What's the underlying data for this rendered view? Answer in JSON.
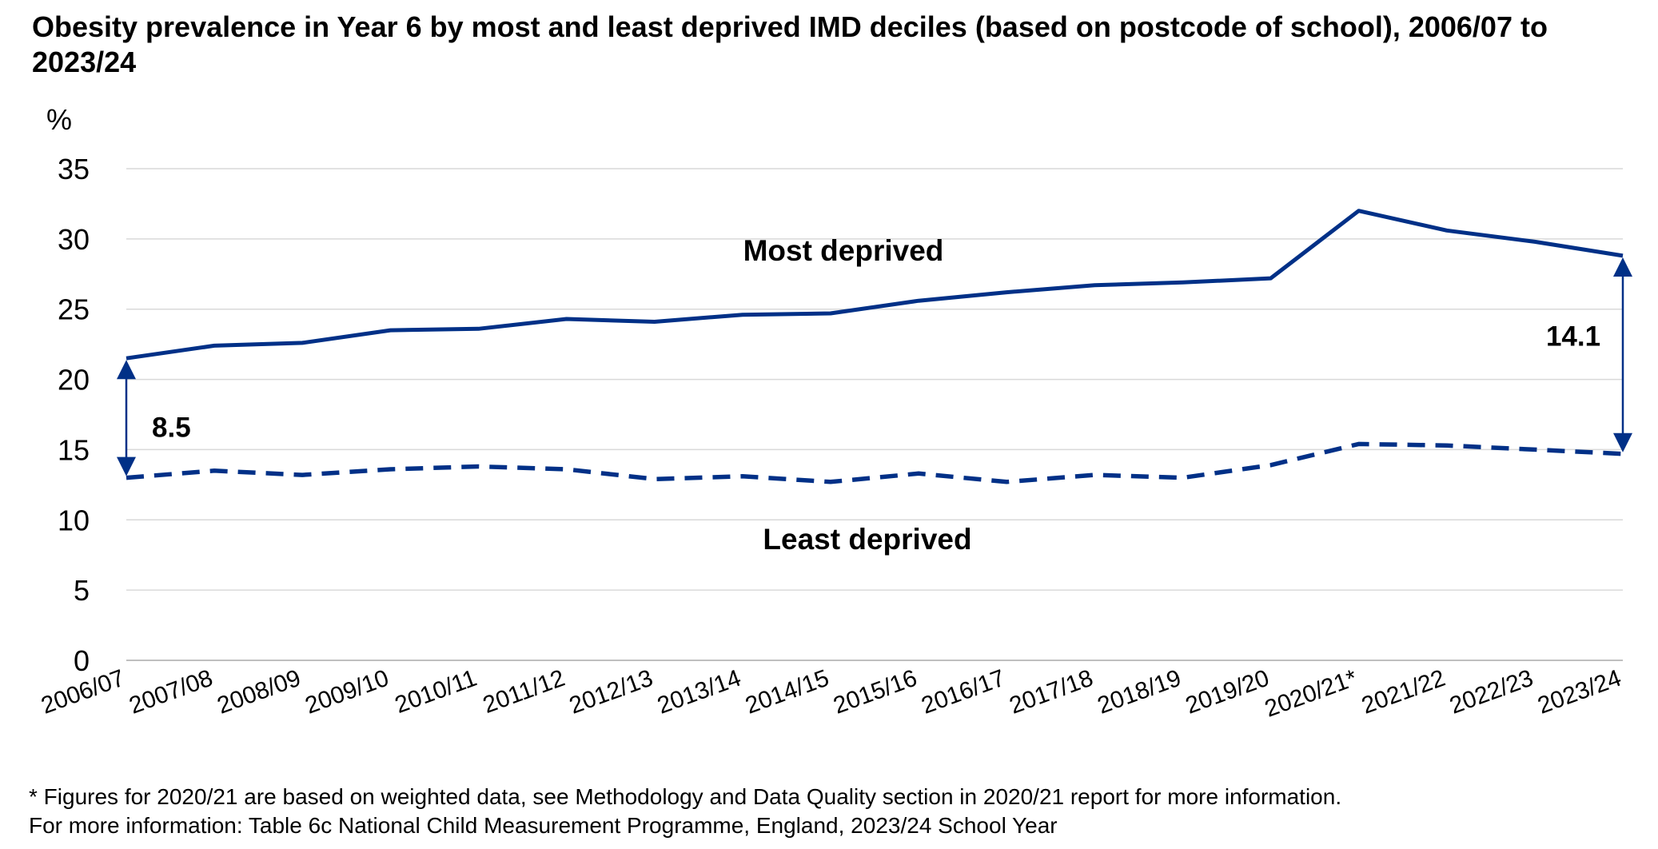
{
  "title": "Obesity prevalence in Year 6 by most and least deprived IMD deciles (based on postcode of school), 2006/07 to 2023/24",
  "notes": {
    "footnote": "* Figures for 2020/21 are based on weighted data, see Methodology and Data Quality section in 2020/21 report for more information.",
    "source": "For more information: Table 6c National Child Measurement Programme, England, 2023/24 School Year"
  },
  "colors": {
    "series": "#003087",
    "grid": "#d9d9d9",
    "axis": "#bfbfbf"
  },
  "chart_data": {
    "type": "line",
    "ylabel": "%",
    "ylim": [
      0,
      35
    ],
    "yticks": [
      0,
      5,
      10,
      15,
      20,
      25,
      30,
      35
    ],
    "grid": "horizontal",
    "legend": "none",
    "categories": [
      "2006/07",
      "2007/08",
      "2008/09",
      "2009/10",
      "2010/11",
      "2011/12",
      "2012/13",
      "2013/14",
      "2014/15",
      "2015/16",
      "2016/17",
      "2017/18",
      "2018/19",
      "2019/20",
      "2020/21*",
      "2021/22",
      "2022/23",
      "2023/24"
    ],
    "series": [
      {
        "name": "Most deprived",
        "style": "solid",
        "values": [
          21.5,
          22.4,
          22.6,
          23.5,
          23.6,
          24.3,
          24.1,
          24.6,
          24.7,
          25.6,
          26.2,
          26.7,
          26.9,
          27.2,
          32.0,
          30.6,
          29.8,
          28.8
        ]
      },
      {
        "name": "Least deprived",
        "style": "dashed",
        "values": [
          13.0,
          13.5,
          13.2,
          13.6,
          13.8,
          13.6,
          12.9,
          13.1,
          12.7,
          13.3,
          12.7,
          13.2,
          13.0,
          13.9,
          15.4,
          15.3,
          15.0,
          14.7
        ]
      }
    ],
    "annotations": [
      {
        "text": "8.5",
        "category": "2006/07",
        "from": 13.0,
        "to": 21.5
      },
      {
        "text": "14.1",
        "category": "2023/24",
        "from": 14.7,
        "to": 28.8
      }
    ]
  }
}
